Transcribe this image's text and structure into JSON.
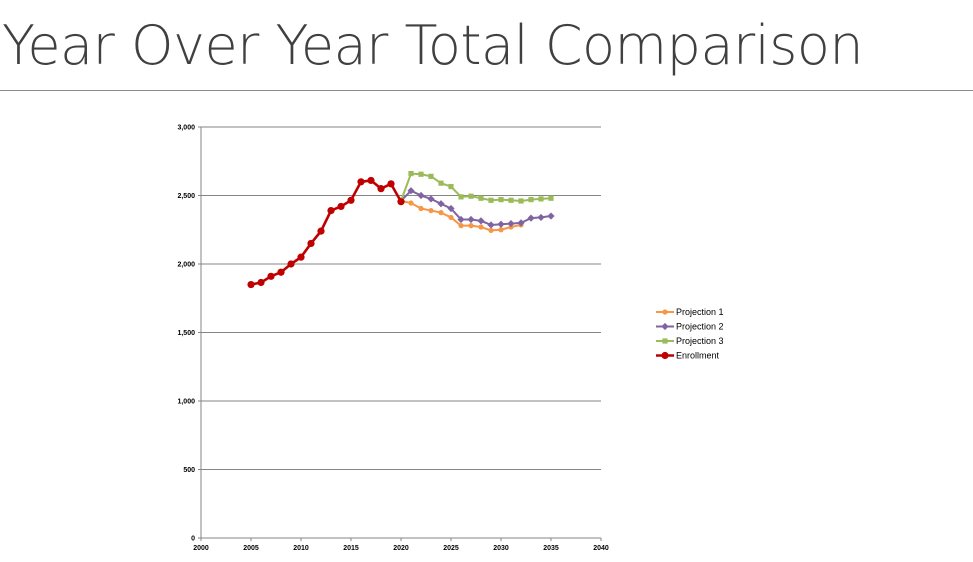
{
  "slide": {
    "title": "Year Over Year Total Comparison"
  },
  "chart_data": {
    "type": "line",
    "xlim": [
      2000,
      2040
    ],
    "ylim": [
      0,
      3000
    ],
    "x_ticks": [
      2000,
      2005,
      2010,
      2015,
      2020,
      2025,
      2030,
      2035,
      2040
    ],
    "x_tick_labels": [
      "2000",
      "2005",
      "2010",
      "2015",
      "2020",
      "2025",
      "2030",
      "2035",
      "2040"
    ],
    "y_ticks": [
      0,
      500,
      1000,
      1500,
      2000,
      2500,
      3000
    ],
    "y_tick_labels": [
      "0",
      "500",
      "1,000",
      "1,500",
      "2,000",
      "2,500",
      "3,000"
    ],
    "grid": "horizontal",
    "legend_position": "right",
    "series": [
      {
        "name": "Projection 1",
        "color": "#f79646",
        "marker": "circle",
        "x": [
          2020,
          2021,
          2022,
          2023,
          2024,
          2025,
          2026,
          2027,
          2028,
          2029,
          2030,
          2031,
          2032
        ],
        "y": [
          2460,
          2445,
          2405,
          2390,
          2375,
          2340,
          2280,
          2280,
          2270,
          2245,
          2250,
          2270,
          2285
        ]
      },
      {
        "name": "Projection 2",
        "color": "#8064a2",
        "marker": "diamond",
        "x": [
          2020,
          2021,
          2022,
          2023,
          2024,
          2025,
          2026,
          2027,
          2028,
          2029,
          2030,
          2031,
          2032,
          2033,
          2034,
          2035
        ],
        "y": [
          2460,
          2535,
          2500,
          2475,
          2440,
          2405,
          2325,
          2325,
          2315,
          2285,
          2290,
          2295,
          2300,
          2335,
          2340,
          2350
        ]
      },
      {
        "name": "Projection 3",
        "color": "#9bbb59",
        "marker": "square",
        "x": [
          2020,
          2021,
          2022,
          2023,
          2024,
          2025,
          2026,
          2027,
          2028,
          2029,
          2030,
          2031,
          2032,
          2033,
          2034,
          2035
        ],
        "y": [
          2460,
          2660,
          2655,
          2640,
          2590,
          2565,
          2490,
          2495,
          2480,
          2465,
          2470,
          2465,
          2460,
          2470,
          2475,
          2480
        ]
      },
      {
        "name": "Enrollment",
        "color": "#c00000",
        "marker": "circle-large",
        "x": [
          2005,
          2006,
          2007,
          2008,
          2009,
          2010,
          2011,
          2012,
          2013,
          2014,
          2015,
          2016,
          2017,
          2018,
          2019,
          2020
        ],
        "y": [
          1850,
          1865,
          1910,
          1940,
          2000,
          2050,
          2150,
          2240,
          2390,
          2420,
          2465,
          2600,
          2610,
          2550,
          2585,
          2455
        ]
      }
    ]
  }
}
